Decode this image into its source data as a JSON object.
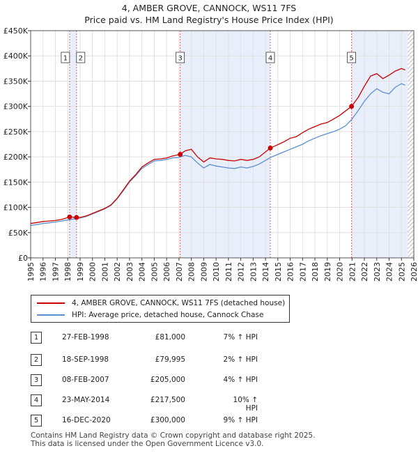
{
  "header": {
    "title": "4, AMBER GROVE, CANNOCK, WS11 7FS",
    "subtitle": "Price paid vs. HM Land Registry's House Price Index (HPI)"
  },
  "colors": {
    "property_line": "#cc0000",
    "hpi_line": "#5b8fd0",
    "shade": "#e8eefa",
    "marker_line": "#dd6666"
  },
  "legend": {
    "property_label": "4, AMBER GROVE, CANNOCK, WS11 7FS (detached house)",
    "hpi_label": "HPI: Average price, detached house, Cannock Chase"
  },
  "sales": [
    {
      "num": "1",
      "date": "27-FEB-1998",
      "price": "£81,000",
      "hpi": "7% ↑ HPI"
    },
    {
      "num": "2",
      "date": "18-SEP-1998",
      "price": "£79,995",
      "hpi": "2% ↑ HPI"
    },
    {
      "num": "3",
      "date": "08-FEB-2007",
      "price": "£205,000",
      "hpi": "4% ↑ HPI"
    },
    {
      "num": "4",
      "date": "23-MAY-2014",
      "price": "£217,500",
      "hpi": "10% ↑ HPI"
    },
    {
      "num": "5",
      "date": "16-DEC-2020",
      "price": "£300,000",
      "hpi": "9% ↑ HPI"
    }
  ],
  "footer": {
    "line1": "Contains HM Land Registry data © Crown copyright and database right 2025.",
    "line2": "This data is licensed under the Open Government Licence v3.0."
  },
  "chart_data": {
    "type": "line",
    "title": "4, AMBER GROVE, CANNOCK, WS11 7FS",
    "subtitle": "Price paid vs. HM Land Registry's House Price Index (HPI)",
    "xlabel": "",
    "ylabel": "",
    "xlim": [
      1995,
      2026
    ],
    "ylim": [
      0,
      450000
    ],
    "grid": true,
    "y_ticks": [
      {
        "value": 0,
        "label": "£0"
      },
      {
        "value": 50000,
        "label": "£50K"
      },
      {
        "value": 100000,
        "label": "£100K"
      },
      {
        "value": 150000,
        "label": "£150K"
      },
      {
        "value": 200000,
        "label": "£200K"
      },
      {
        "value": 250000,
        "label": "£250K"
      },
      {
        "value": 300000,
        "label": "£300K"
      },
      {
        "value": 350000,
        "label": "£350K"
      },
      {
        "value": 400000,
        "label": "£400K"
      },
      {
        "value": 450000,
        "label": "£450K"
      }
    ],
    "x_ticks": [
      "1995",
      "1996",
      "1997",
      "1998",
      "1999",
      "2000",
      "2001",
      "2002",
      "2003",
      "2004",
      "2005",
      "2006",
      "2007",
      "2008",
      "2009",
      "2010",
      "2011",
      "2012",
      "2013",
      "2014",
      "2015",
      "2016",
      "2017",
      "2018",
      "2019",
      "2020",
      "2021",
      "2022",
      "2023",
      "2024",
      "2025",
      "2026"
    ],
    "shaded_periods": [
      [
        1998.15,
        1998.71
      ],
      [
        2007.1,
        2014.39
      ],
      [
        2020.96,
        2025.5
      ]
    ],
    "hatched_after": 2025.5,
    "series": [
      {
        "name": "4, AMBER GROVE, CANNOCK, WS11 7FS (detached house)",
        "x": [
          1995,
          1995.5,
          1996,
          1996.5,
          1997,
          1997.5,
          1998.15,
          1998.71,
          1999,
          1999.5,
          2000,
          2000.5,
          2001,
          2001.5,
          2002,
          2002.5,
          2003,
          2003.5,
          2004,
          2004.5,
          2005,
          2005.5,
          2006,
          2006.5,
          2007.1,
          2007.5,
          2008,
          2008.5,
          2009,
          2009.5,
          2010,
          2010.5,
          2011,
          2011.5,
          2012,
          2012.5,
          2013,
          2013.5,
          2014.39,
          2014.8,
          2015.5,
          2016,
          2016.5,
          2017,
          2017.5,
          2018,
          2018.5,
          2019,
          2019.5,
          2020,
          2020.96,
          2021.5,
          2022,
          2022.5,
          2023,
          2023.5,
          2024,
          2024.5,
          2025,
          2025.3
        ],
        "values": [
          68000,
          70000,
          72000,
          73000,
          74000,
          76000,
          81000,
          79995,
          80000,
          83000,
          88000,
          93000,
          98000,
          105000,
          118000,
          135000,
          152000,
          165000,
          180000,
          188000,
          195000,
          196000,
          198000,
          202000,
          205000,
          212000,
          215000,
          200000,
          190000,
          198000,
          196000,
          195000,
          193000,
          192000,
          195000,
          193000,
          195000,
          200000,
          217500,
          222000,
          230000,
          237000,
          240000,
          248000,
          255000,
          260000,
          265000,
          268000,
          275000,
          282000,
          300000,
          318000,
          340000,
          360000,
          365000,
          355000,
          362000,
          370000,
          375000,
          372000
        ]
      },
      {
        "name": "HPI: Average price, detached house, Cannock Chase",
        "x": [
          1995,
          1995.5,
          1996,
          1996.5,
          1997,
          1997.5,
          1998,
          1998.5,
          1999,
          1999.5,
          2000,
          2000.5,
          2001,
          2001.5,
          2002,
          2002.5,
          2003,
          2003.5,
          2004,
          2004.5,
          2005,
          2005.5,
          2006,
          2006.5,
          2007,
          2007.5,
          2008,
          2008.5,
          2009,
          2009.5,
          2010,
          2010.5,
          2011,
          2011.5,
          2012,
          2012.5,
          2013,
          2013.5,
          2014,
          2014.5,
          2015,
          2015.5,
          2016,
          2016.5,
          2017,
          2017.5,
          2018,
          2018.5,
          2019,
          2019.5,
          2020,
          2020.5,
          2021,
          2021.5,
          2022,
          2022.5,
          2023,
          2023.5,
          2024,
          2024.5,
          2025,
          2025.3
        ],
        "values": [
          64000,
          66000,
          68000,
          69500,
          71000,
          73000,
          75000,
          77000,
          79000,
          82000,
          87000,
          92000,
          97000,
          104000,
          117000,
          133000,
          150000,
          163000,
          177000,
          185000,
          192000,
          193000,
          195000,
          198000,
          199000,
          203000,
          200000,
          188000,
          178000,
          185000,
          182000,
          180000,
          178000,
          177000,
          180000,
          178000,
          181000,
          186000,
          193000,
          200000,
          205000,
          210000,
          215000,
          220000,
          225000,
          232000,
          237000,
          242000,
          246000,
          250000,
          255000,
          262000,
          275000,
          292000,
          310000,
          325000,
          335000,
          328000,
          325000,
          338000,
          345000,
          342000
        ]
      }
    ],
    "sale_points": [
      {
        "num": "1",
        "x": 1998.15,
        "value": 81000
      },
      {
        "num": "2",
        "x": 1998.71,
        "value": 79995
      },
      {
        "num": "3",
        "x": 2007.1,
        "value": 205000
      },
      {
        "num": "4",
        "x": 2014.39,
        "value": 217500
      },
      {
        "num": "5",
        "x": 2020.96,
        "value": 300000
      }
    ]
  }
}
